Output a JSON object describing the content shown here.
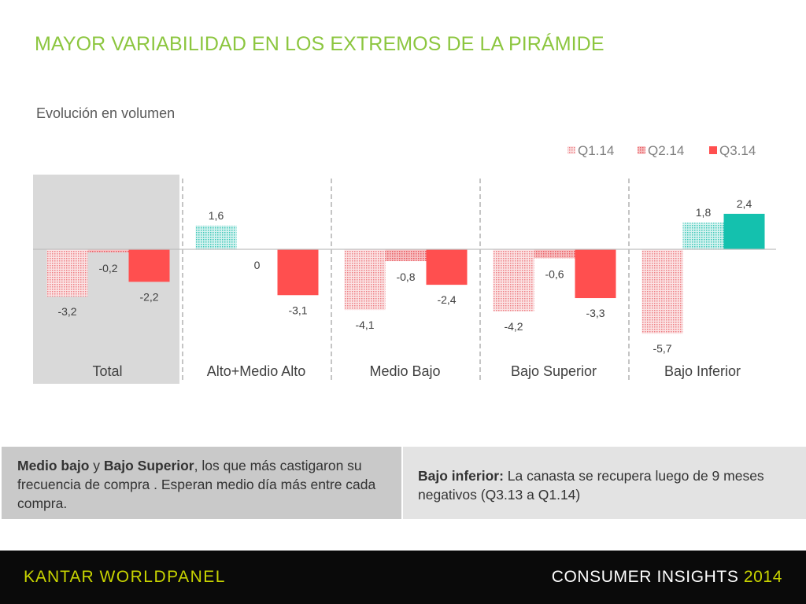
{
  "title": "MAYOR VARIABILIDAD EN LOS EXTREMOS DE LA PIRÁMIDE",
  "subtitle": "Evolución en volumen",
  "colors": {
    "title": "#8cc63f",
    "q1_negative": "#f4a3a6",
    "q2_negative": "#f0898d",
    "q3_negative": "#ff4f4f",
    "q1_positive": "#8fdcd4",
    "q3_positive": "#14c1ae",
    "total_panel": "#d9d9d9"
  },
  "chart_data": {
    "type": "bar",
    "title": "",
    "categories": [
      "Total",
      "Alto+Medio Alto",
      "Medio Bajo",
      "Bajo Superior",
      "Bajo Inferior"
    ],
    "series": [
      {
        "name": "Q1.14",
        "values": [
          -3.2,
          1.6,
          -4.1,
          -4.2,
          -5.7
        ],
        "labels": [
          "-3,2",
          "1,6",
          "-4,1",
          "-4,2",
          "-5,7"
        ]
      },
      {
        "name": "Q2.14",
        "values": [
          -0.2,
          0,
          -0.8,
          -0.6,
          1.8
        ],
        "labels": [
          "-0,2",
          "0",
          "-0,8",
          "-0,6",
          "1,8"
        ]
      },
      {
        "name": "Q3.14",
        "values": [
          -2.2,
          -3.1,
          -2.4,
          -3.3,
          2.4
        ],
        "labels": [
          "-2,2",
          "-3,1",
          "-2,4",
          "-3,3",
          "2,4"
        ]
      }
    ],
    "legend_position": "top-right",
    "grid": false
  },
  "notes": {
    "left_bold_1": "Medio bajo",
    "left_join": " y ",
    "left_bold_2": "Bajo Superior",
    "left_rest": ", los que más castigaron su frecuencia de compra . Esperan medio día más entre cada compra.",
    "right_bold": "Bajo inferior:",
    "right_rest": " La canasta se recupera luego de 9 meses negativos (Q3.13 a Q1.14)"
  },
  "footer": {
    "brand_part1": "KANTAR",
    "brand_part2": "WORLDPANEL",
    "tagline": "CONSUMER INSIGHTS",
    "year": "2014"
  }
}
